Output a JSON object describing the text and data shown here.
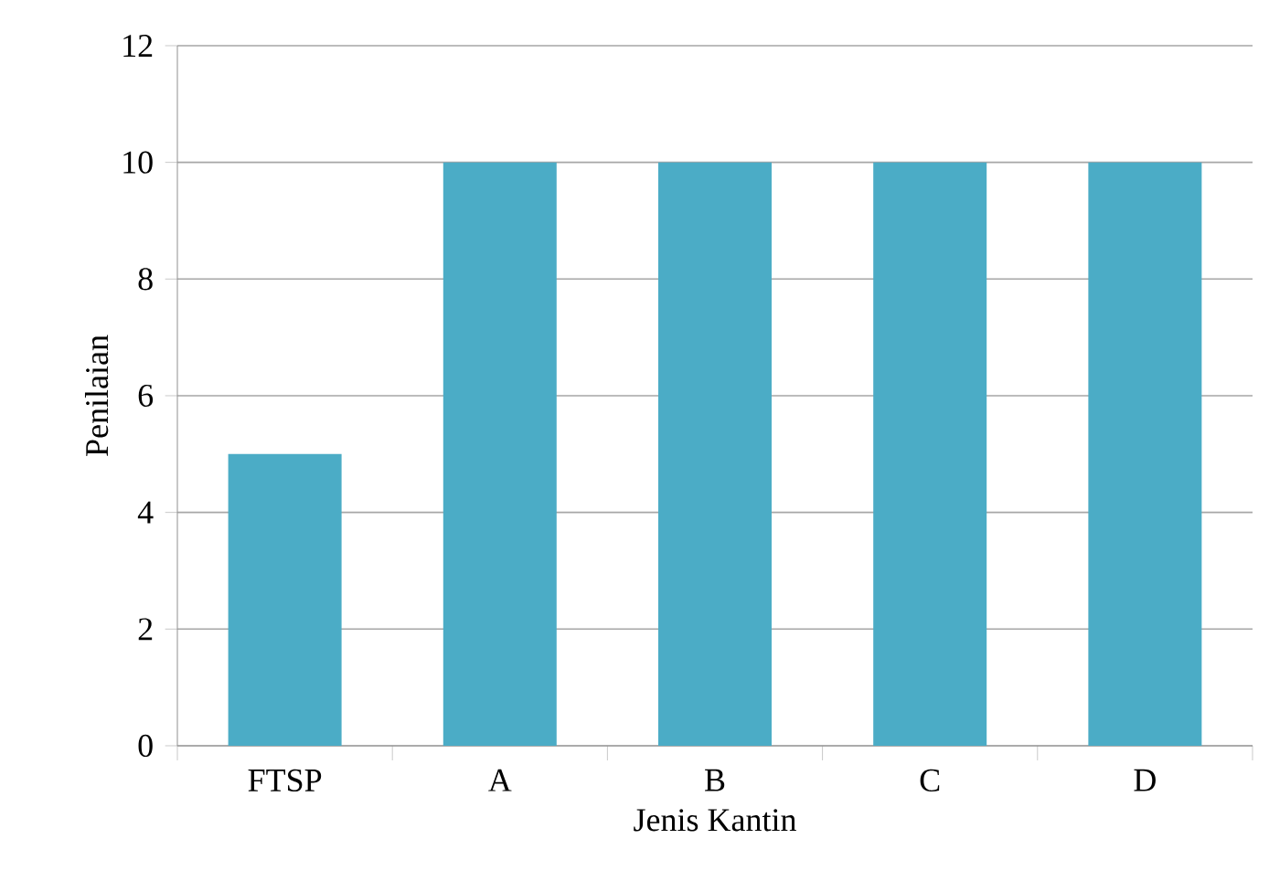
{
  "chart_data": {
    "type": "bar",
    "xlabel": "Jenis Kantin",
    "ylabel": "Penilaian",
    "categories": [
      "FTSP",
      "A",
      "B",
      "C",
      "D"
    ],
    "values": [
      5,
      10,
      10,
      10,
      10
    ],
    "color": "#4bacc6",
    "ylim": [
      0,
      12
    ],
    "yticks": [
      0,
      2,
      4,
      6,
      8,
      10,
      12
    ],
    "grid": "y"
  }
}
